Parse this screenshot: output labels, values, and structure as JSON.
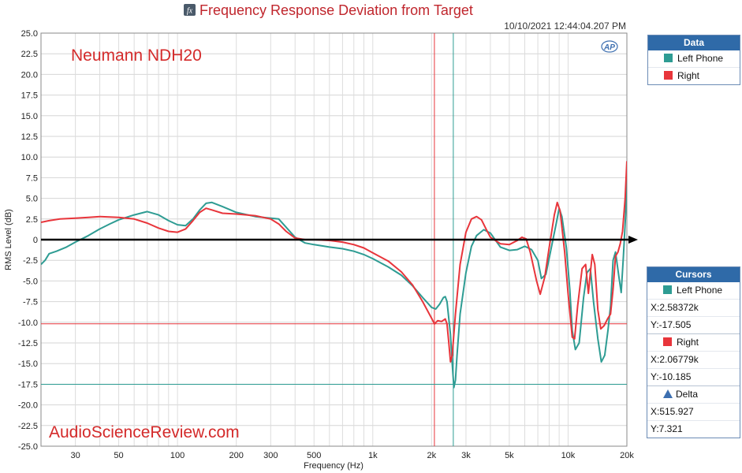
{
  "title": "Frequency Response Deviation from Target",
  "timestamp": "10/10/2021 12:44:04.207 PM",
  "brand_text": "Neumann NDH20",
  "watermark": "AudioScienceReview.com",
  "logo_text": "AP",
  "fx_icon_text": "fx",
  "colors": {
    "left": "#2e9c93",
    "right": "#e8353b",
    "zero_line": "#000000",
    "panel_header": "#2f6aa8"
  },
  "data_panel": {
    "title": "Data",
    "items": [
      {
        "label": "Left Phone",
        "color": "#2e9c93"
      },
      {
        "label": "Right",
        "color": "#e8353b"
      }
    ]
  },
  "cursors_panel": {
    "title": "Cursors",
    "left": {
      "label": "Left Phone",
      "x": "X:2.58372k",
      "y": "Y:-17.505"
    },
    "right": {
      "label": "Right",
      "x": "X:2.06779k",
      "y": "Y:-10.185"
    },
    "delta": {
      "label": "Delta",
      "x": "X:515.927",
      "y": "Y:7.321"
    }
  },
  "chart_data": {
    "type": "line",
    "title": "Frequency Response Deviation from Target",
    "xlabel": "Frequency (Hz)",
    "ylabel": "RMS Level (dB)",
    "xscale": "log",
    "xlim": [
      20,
      20000
    ],
    "ylim": [
      -25,
      25
    ],
    "grid": true,
    "legend": "right panel",
    "x_tick_values": [
      30,
      50,
      100,
      200,
      300,
      500,
      1000,
      2000,
      3000,
      5000,
      10000,
      20000
    ],
    "x_tick_labels": [
      "30",
      "50",
      "100",
      "200",
      "300",
      "500",
      "1k",
      "2k",
      "3k",
      "5k",
      "10k",
      "20k"
    ],
    "y_tick_values": [
      25,
      22.5,
      20,
      17.5,
      15,
      12.5,
      10,
      7.5,
      5,
      2.5,
      0,
      -2.5,
      -5,
      -7.5,
      -10,
      -12.5,
      -15,
      -17.5,
      -20,
      -22.5,
      -25
    ],
    "y_tick_labels": [
      "25.0",
      "22.5",
      "20.0",
      "17.5",
      "15.0",
      "12.5",
      "10.0",
      "7.5",
      "5.0",
      "2.5",
      "0",
      "-2.5",
      "-5.0",
      "-7.5",
      "-10.0",
      "-12.5",
      "-15.0",
      "-17.5",
      "-20.0",
      "-22.5",
      "-25.0"
    ],
    "cursor_lines": [
      {
        "series": "Right",
        "x": 2067.79,
        "y": -10.185
      },
      {
        "series": "Left Phone",
        "x": 2583.72,
        "y": -17.505
      }
    ],
    "series": [
      {
        "name": "Left Phone",
        "color": "#2e9c93",
        "points": [
          [
            20,
            -3
          ],
          [
            21,
            -2.5
          ],
          [
            22,
            -1.7
          ],
          [
            24,
            -1.4
          ],
          [
            27,
            -0.9
          ],
          [
            30,
            -0.3
          ],
          [
            35,
            0.5
          ],
          [
            40,
            1.3
          ],
          [
            45,
            1.9
          ],
          [
            50,
            2.4
          ],
          [
            60,
            3.0
          ],
          [
            70,
            3.4
          ],
          [
            80,
            3.0
          ],
          [
            90,
            2.3
          ],
          [
            100,
            1.8
          ],
          [
            110,
            1.7
          ],
          [
            120,
            2.5
          ],
          [
            130,
            3.6
          ],
          [
            140,
            4.4
          ],
          [
            150,
            4.5
          ],
          [
            170,
            4.0
          ],
          [
            200,
            3.3
          ],
          [
            250,
            2.8
          ],
          [
            300,
            2.6
          ],
          [
            330,
            2.5
          ],
          [
            360,
            1.5
          ],
          [
            400,
            0.3
          ],
          [
            450,
            -0.4
          ],
          [
            500,
            -0.6
          ],
          [
            600,
            -0.9
          ],
          [
            700,
            -1.1
          ],
          [
            800,
            -1.4
          ],
          [
            900,
            -1.8
          ],
          [
            1000,
            -2.3
          ],
          [
            1200,
            -3.3
          ],
          [
            1400,
            -4.3
          ],
          [
            1600,
            -5.6
          ],
          [
            1800,
            -7.0
          ],
          [
            2000,
            -8.2
          ],
          [
            2100,
            -8.4
          ],
          [
            2200,
            -7.8
          ],
          [
            2300,
            -7.0
          ],
          [
            2350,
            -6.9
          ],
          [
            2400,
            -7.5
          ],
          [
            2500,
            -11.5
          ],
          [
            2550,
            -15.0
          ],
          [
            2600,
            -17.9
          ],
          [
            2650,
            -17.0
          ],
          [
            2700,
            -14.0
          ],
          [
            2800,
            -9.0
          ],
          [
            3000,
            -4.0
          ],
          [
            3200,
            -0.8
          ],
          [
            3400,
            0.5
          ],
          [
            3700,
            1.2
          ],
          [
            4000,
            0.8
          ],
          [
            4500,
            -0.9
          ],
          [
            5000,
            -1.3
          ],
          [
            5500,
            -1.2
          ],
          [
            6000,
            -0.8
          ],
          [
            6500,
            -1.2
          ],
          [
            7000,
            -2.5
          ],
          [
            7300,
            -4.7
          ],
          [
            7700,
            -4.2
          ],
          [
            8200,
            -1.0
          ],
          [
            8700,
            2.0
          ],
          [
            9000,
            3.8
          ],
          [
            9300,
            2.8
          ],
          [
            9800,
            -1.0
          ],
          [
            10200,
            -6.0
          ],
          [
            10500,
            -11.0
          ],
          [
            10900,
            -13.3
          ],
          [
            11400,
            -12.5
          ],
          [
            12000,
            -7.0
          ],
          [
            12500,
            -4.0
          ],
          [
            13000,
            -3.5
          ],
          [
            13500,
            -7.5
          ],
          [
            14200,
            -12.0
          ],
          [
            14800,
            -14.8
          ],
          [
            15400,
            -14.0
          ],
          [
            16000,
            -11.0
          ],
          [
            16500,
            -8.0
          ],
          [
            17000,
            -2.5
          ],
          [
            17500,
            -1.5
          ],
          [
            18200,
            -4.5
          ],
          [
            18700,
            -6.4
          ],
          [
            19200,
            -2.0
          ],
          [
            19700,
            3.0
          ],
          [
            20000,
            8.0
          ]
        ]
      },
      {
        "name": "Right",
        "color": "#e8353b",
        "points": [
          [
            20,
            2.1
          ],
          [
            22,
            2.3
          ],
          [
            25,
            2.5
          ],
          [
            30,
            2.6
          ],
          [
            35,
            2.7
          ],
          [
            40,
            2.8
          ],
          [
            50,
            2.7
          ],
          [
            60,
            2.5
          ],
          [
            70,
            2.0
          ],
          [
            80,
            1.4
          ],
          [
            90,
            1.0
          ],
          [
            100,
            0.9
          ],
          [
            110,
            1.3
          ],
          [
            120,
            2.3
          ],
          [
            130,
            3.3
          ],
          [
            140,
            3.8
          ],
          [
            150,
            3.6
          ],
          [
            170,
            3.2
          ],
          [
            200,
            3.1
          ],
          [
            250,
            2.9
          ],
          [
            300,
            2.5
          ],
          [
            330,
            1.9
          ],
          [
            360,
            1.0
          ],
          [
            400,
            0.2
          ],
          [
            450,
            0
          ],
          [
            500,
            0
          ],
          [
            600,
            -0.1
          ],
          [
            700,
            -0.3
          ],
          [
            800,
            -0.6
          ],
          [
            900,
            -1.0
          ],
          [
            1000,
            -1.6
          ],
          [
            1200,
            -2.6
          ],
          [
            1400,
            -3.9
          ],
          [
            1600,
            -5.5
          ],
          [
            1800,
            -7.5
          ],
          [
            2000,
            -9.5
          ],
          [
            2070,
            -10.2
          ],
          [
            2150,
            -9.8
          ],
          [
            2250,
            -9.9
          ],
          [
            2350,
            -9.6
          ],
          [
            2400,
            -10.2
          ],
          [
            2450,
            -12.5
          ],
          [
            2500,
            -14.8
          ],
          [
            2550,
            -14.0
          ],
          [
            2650,
            -9.0
          ],
          [
            2800,
            -3.0
          ],
          [
            3000,
            0.9
          ],
          [
            3200,
            2.5
          ],
          [
            3400,
            2.8
          ],
          [
            3600,
            2.4
          ],
          [
            3800,
            1.3
          ],
          [
            4000,
            0.3
          ],
          [
            4500,
            -0.5
          ],
          [
            5000,
            -0.6
          ],
          [
            5500,
            -0.1
          ],
          [
            5800,
            0.3
          ],
          [
            6100,
            0.1
          ],
          [
            6400,
            -1.5
          ],
          [
            6900,
            -5.0
          ],
          [
            7200,
            -6.6
          ],
          [
            7600,
            -4.5
          ],
          [
            8000,
            -1.0
          ],
          [
            8500,
            3.0
          ],
          [
            8800,
            4.5
          ],
          [
            9100,
            3.5
          ],
          [
            9600,
            -1.5
          ],
          [
            10000,
            -6.5
          ],
          [
            10500,
            -11.8
          ],
          [
            10800,
            -12.0
          ],
          [
            11200,
            -8.0
          ],
          [
            11800,
            -3.5
          ],
          [
            12300,
            -3.0
          ],
          [
            12700,
            -6.5
          ],
          [
            13000,
            -4.0
          ],
          [
            13300,
            -1.8
          ],
          [
            13700,
            -3.0
          ],
          [
            14200,
            -8.5
          ],
          [
            14700,
            -10.8
          ],
          [
            15300,
            -10.4
          ],
          [
            16000,
            -9.5
          ],
          [
            16500,
            -9.0
          ],
          [
            17000,
            -6.0
          ],
          [
            17500,
            -2.0
          ],
          [
            18000,
            -1.5
          ],
          [
            18500,
            -0.5
          ],
          [
            19000,
            1.0
          ],
          [
            19600,
            5.0
          ],
          [
            20000,
            9.5
          ]
        ]
      }
    ]
  }
}
